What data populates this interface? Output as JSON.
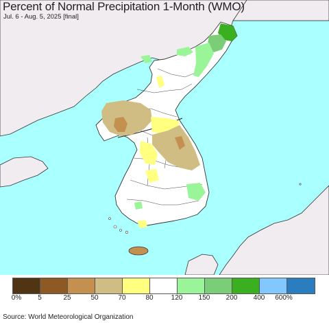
{
  "map": {
    "title": "Percent of Normal Precipitation 1-Month (WMO)",
    "subtitle": "Jul. 6 - Aug. 5, 2025 [final]",
    "source": "Source: World Meteorological Organization",
    "colors": {
      "sea": "#aaffff",
      "land_outside": "#f0ecf0",
      "land_normal": "#ffffff",
      "border": "#333333"
    }
  },
  "legend": {
    "colors": [
      "#4f3514",
      "#8c5a22",
      "#c49050",
      "#d0bd84",
      "#ffff80",
      "#ffffff",
      "#99f598",
      "#7ccd78",
      "#3aaf20",
      "#80c8ff",
      "#2a7ec0"
    ],
    "labels": [
      "0%",
      "5",
      "25",
      "50",
      "70",
      "80",
      "120",
      "150",
      "200",
      "400",
      "600%"
    ]
  }
}
